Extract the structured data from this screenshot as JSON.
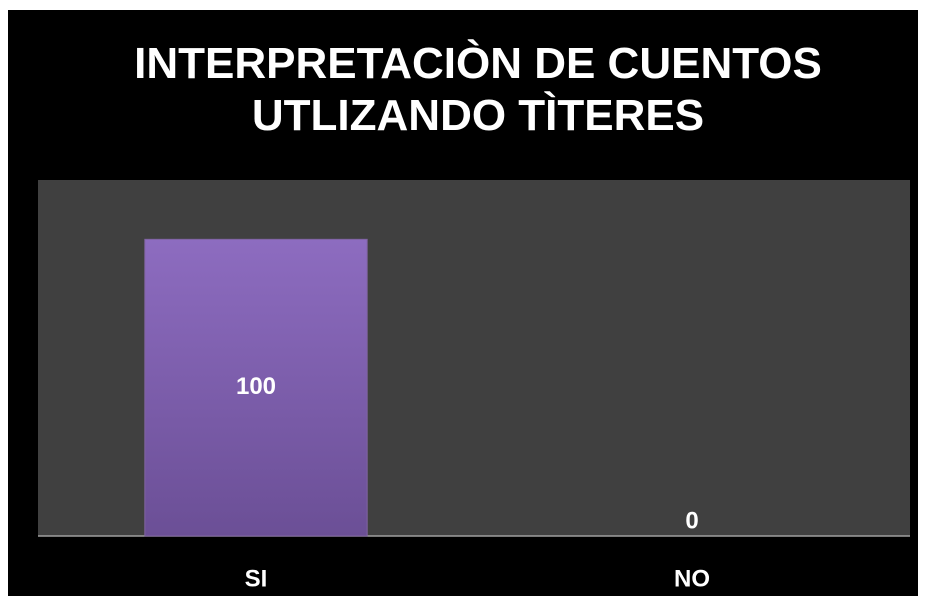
{
  "chart_data": {
    "type": "bar",
    "title": "INTERPRETACIÒN DE CUENTOS UTLIZANDO TÌTERES",
    "categories": [
      "SI",
      "NO"
    ],
    "values": [
      100,
      0
    ],
    "color": "#8064a2",
    "ylim": [
      0,
      120
    ]
  }
}
